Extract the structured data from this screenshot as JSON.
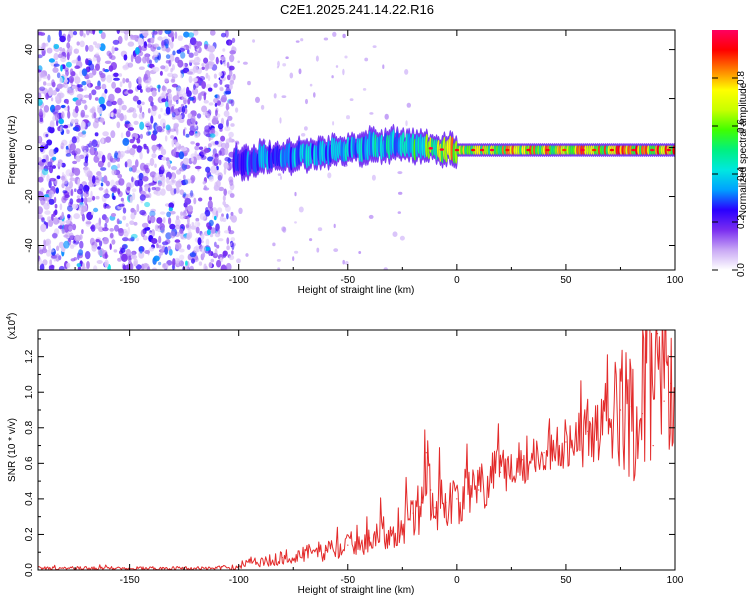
{
  "title": "C2E1.2025.241.14.22.R16",
  "chart_data": [
    {
      "type": "heatmap",
      "name": "spectrogram",
      "xlabel": "Height of straight line (km)",
      "ylabel": "Frequency (Hz)",
      "xlim": [
        -192,
        100
      ],
      "ylim": [
        -50,
        48
      ],
      "xticks": [
        -150,
        -100,
        -50,
        0,
        50,
        100
      ],
      "yticks": [
        -40,
        -20,
        0,
        20,
        40
      ],
      "colorbar": {
        "label": "Normalized spectral amplitude",
        "range": [
          0.0,
          1.0
        ],
        "ticks": [
          0.0,
          0.2,
          0.4,
          0.6,
          0.8
        ],
        "colors": [
          "#ffffff",
          "#c9a8f5",
          "#7a2ef0",
          "#2a00ff",
          "#00a0ff",
          "#00e8e0",
          "#00f080",
          "#40ff00",
          "#c8ff00",
          "#ffff00",
          "#ff8000",
          "#ff0000",
          "#ff0060"
        ]
      },
      "noise_region": {
        "x": [
          -192,
          -102
        ],
        "amplitude": 0.2
      },
      "signal_ridge": {
        "x": [
          -102,
          -95,
          -85,
          -75,
          -65,
          -55,
          -45,
          -35,
          -25,
          -15,
          -5,
          0,
          10,
          25,
          50,
          75,
          100
        ],
        "frequency": [
          -6,
          -5,
          -4,
          -3,
          -2,
          -1,
          0,
          1,
          1,
          0,
          -1,
          -1,
          -1,
          -1,
          -1,
          -1,
          -1
        ],
        "amplitude": [
          0.3,
          0.35,
          0.35,
          0.4,
          0.4,
          0.42,
          0.42,
          0.45,
          0.45,
          0.6,
          0.7,
          0.85,
          0.8,
          0.8,
          0.8,
          0.85,
          0.85
        ]
      }
    },
    {
      "type": "line",
      "name": "snr",
      "xlabel": "Height of straight line (km)",
      "ylabel": "SNR (10 * v/v)",
      "y_multiplier": "(x10",
      "y_multiplier_exp": "4",
      "xlim": [
        -192,
        100
      ],
      "ylim": [
        0,
        1.35
      ],
      "xticks": [
        -150,
        -100,
        -50,
        0,
        50,
        100
      ],
      "yticks": [
        "0.0",
        "0.2",
        "0.4",
        "0.6",
        "0.8",
        "1.0",
        "1.2"
      ],
      "color": "#e32b2b",
      "series": [
        {
          "name": "SNR",
          "x": [
            -192,
            -150,
            -110,
            -100,
            -95,
            -90,
            -80,
            -70,
            -60,
            -50,
            -40,
            -30,
            -20,
            -16,
            -14,
            -12,
            -10,
            -5,
            0,
            10,
            20,
            30,
            40,
            50,
            60,
            70,
            75,
            80,
            85,
            88,
            90,
            92,
            95,
            98,
            100
          ],
          "y": [
            0.01,
            0.01,
            0.01,
            0.02,
            0.06,
            0.04,
            0.07,
            0.09,
            0.11,
            0.14,
            0.18,
            0.22,
            0.32,
            0.38,
            0.66,
            0.45,
            0.35,
            0.38,
            0.4,
            0.45,
            0.55,
            0.62,
            0.66,
            0.72,
            0.78,
            0.85,
            0.9,
            0.92,
            0.88,
            1.35,
            0.7,
            1.33,
            0.95,
            1.05,
            0.98
          ],
          "spread": [
            0.01,
            0.01,
            0.01,
            0.02,
            0.03,
            0.03,
            0.04,
            0.05,
            0.06,
            0.07,
            0.09,
            0.1,
            0.15,
            0.2,
            0.25,
            0.2,
            0.15,
            0.15,
            0.15,
            0.15,
            0.15,
            0.15,
            0.1,
            0.15,
            0.2,
            0.25,
            0.35,
            0.4,
            0.45,
            0.5,
            0.55,
            0.45,
            0.4,
            0.35,
            0.3
          ]
        }
      ]
    }
  ]
}
